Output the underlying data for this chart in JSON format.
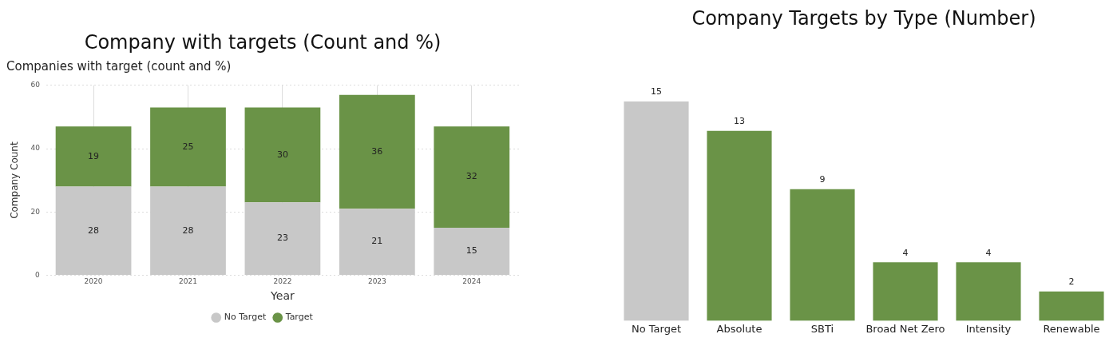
{
  "chart_data": [
    {
      "type": "bar",
      "title": "Company with targets (Count and %)",
      "subtitle": "Companies with target (count and %)",
      "xlabel": "Year",
      "ylabel": "Company Count",
      "categories": [
        "2020",
        "2021",
        "2022",
        "2023",
        "2024"
      ],
      "stacked": true,
      "series": [
        {
          "name": "No Target",
          "color": "#c8c8c8",
          "values": [
            28,
            28,
            23,
            21,
            15
          ]
        },
        {
          "name": "Target",
          "color": "#6a9347",
          "values": [
            19,
            25,
            30,
            36,
            32
          ]
        }
      ],
      "ylim": [
        0,
        60
      ],
      "yticks": [
        0,
        20,
        40,
        60
      ],
      "grid": true,
      "legend": "bottom",
      "data_labels": true
    },
    {
      "type": "bar",
      "title": "Company Targets by Type (Number)",
      "categories": [
        "No Target",
        "Absolute",
        "SBTi",
        "Broad Net Zero",
        "Intensity",
        "Renewable"
      ],
      "values": [
        15,
        13,
        9,
        4,
        4,
        2
      ],
      "colors": [
        "#c8c8c8",
        "#6a9347",
        "#6a9347",
        "#6a9347",
        "#6a9347",
        "#6a9347"
      ],
      "data_labels": true,
      "tick_labels": "x"
    }
  ]
}
